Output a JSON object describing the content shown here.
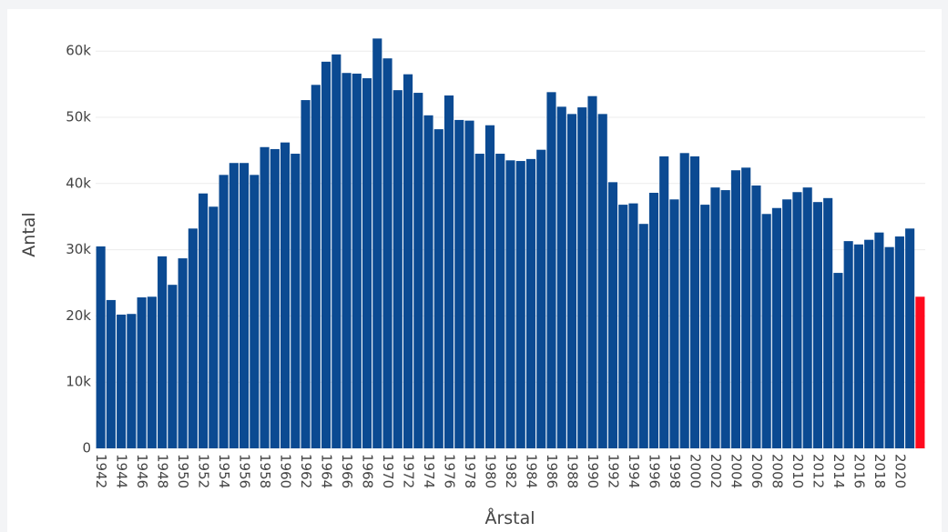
{
  "chart_data": {
    "type": "bar",
    "x_label": "Årstal",
    "y_label": "Antal",
    "categories": [
      "1942",
      null,
      "1944",
      null,
      "1946",
      null,
      "1948",
      null,
      "1950",
      null,
      "1952",
      null,
      "1954",
      null,
      "1956",
      null,
      "1958",
      null,
      "1960",
      null,
      "1962",
      null,
      "1964",
      null,
      "1966",
      null,
      "1968",
      null,
      "1970",
      null,
      "1972",
      null,
      "1974",
      null,
      "1976",
      null,
      "1978",
      null,
      "1980",
      null,
      "1982",
      null,
      "1984",
      null,
      "1986",
      null,
      "1988",
      null,
      "1990",
      null,
      "1992",
      null,
      "1994",
      null,
      "1996",
      null,
      "1998",
      null,
      "2000",
      null,
      "2002",
      null,
      "2004",
      null,
      "2006",
      null,
      "2008",
      null,
      "2010",
      null,
      "2012",
      null,
      "2014",
      null,
      "2016",
      null,
      "2018",
      null,
      "2020",
      null,
      null
    ],
    "values": [
      30500,
      22400,
      20200,
      20300,
      22800,
      22900,
      29000,
      24700,
      28700,
      33200,
      38500,
      36500,
      41300,
      43100,
      43100,
      41300,
      45500,
      45200,
      46200,
      44500,
      52600,
      54900,
      58400,
      59500,
      56700,
      56600,
      55900,
      61900,
      58900,
      54100,
      56500,
      53700,
      50300,
      48200,
      53300,
      49600,
      49500,
      44500,
      48800,
      44500,
      43500,
      43400,
      43700,
      45100,
      53800,
      51600,
      50500,
      51500,
      53200,
      50500,
      40200,
      36800,
      37000,
      33900,
      38600,
      44100,
      37600,
      44600,
      44100,
      36800,
      39400,
      39000,
      42000,
      42400,
      39700,
      35400,
      36300,
      37600,
      38700,
      39400,
      37200,
      37800,
      26500,
      31300,
      30800,
      31500,
      32600,
      30400,
      32000,
      33200,
      22900
    ],
    "colors": [
      "#0b4a92",
      "#0b4a92",
      "#0b4a92",
      "#0b4a92",
      "#0b4a92",
      "#0b4a92",
      "#0b4a92",
      "#0b4a92",
      "#0b4a92",
      "#0b4a92",
      "#0b4a92",
      "#0b4a92",
      "#0b4a92",
      "#0b4a92",
      "#0b4a92",
      "#0b4a92",
      "#0b4a92",
      "#0b4a92",
      "#0b4a92",
      "#0b4a92",
      "#0b4a92",
      "#0b4a92",
      "#0b4a92",
      "#0b4a92",
      "#0b4a92",
      "#0b4a92",
      "#0b4a92",
      "#0b4a92",
      "#0b4a92",
      "#0b4a92",
      "#0b4a92",
      "#0b4a92",
      "#0b4a92",
      "#0b4a92",
      "#0b4a92",
      "#0b4a92",
      "#0b4a92",
      "#0b4a92",
      "#0b4a92",
      "#0b4a92",
      "#0b4a92",
      "#0b4a92",
      "#0b4a92",
      "#0b4a92",
      "#0b4a92",
      "#0b4a92",
      "#0b4a92",
      "#0b4a92",
      "#0b4a92",
      "#0b4a92",
      "#0b4a92",
      "#0b4a92",
      "#0b4a92",
      "#0b4a92",
      "#0b4a92",
      "#0b4a92",
      "#0b4a92",
      "#0b4a92",
      "#0b4a92",
      "#0b4a92",
      "#0b4a92",
      "#0b4a92",
      "#0b4a92",
      "#0b4a92",
      "#0b4a92",
      "#0b4a92",
      "#0b4a92",
      "#0b4a92",
      "#0b4a92",
      "#0b4a92",
      "#0b4a92",
      "#0b4a92",
      "#0b4a92",
      "#0b4a92",
      "#0b4a92",
      "#0b4a92",
      "#0b4a92",
      "#0b4a92",
      "#0b4a92",
      "#0b4a92",
      "#ff0a1e"
    ],
    "ylim": [
      0,
      62500
    ],
    "yticks": [
      0,
      {
        "value": 10000,
        "label": "10k"
      },
      {
        "value": 20000,
        "label": "20k"
      },
      {
        "value": 30000,
        "label": "30k"
      },
      {
        "value": 40000,
        "label": "40k"
      },
      {
        "value": 50000,
        "label": "50k"
      },
      {
        "value": 60000,
        "label": "60k"
      }
    ],
    "grid": true
  }
}
